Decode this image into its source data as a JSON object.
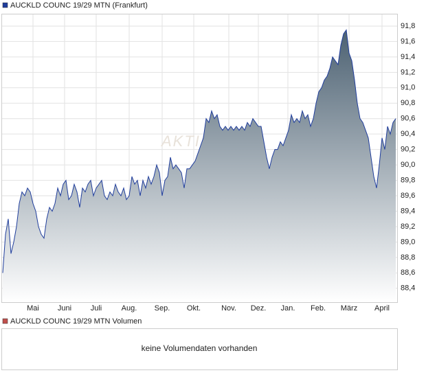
{
  "chart_data": {
    "type": "area",
    "title": "AUCKLD COUNC 19/29 MTN (Frankfurt)",
    "watermark": "AKTIEN",
    "series": [
      {
        "name": "AUCKLD COUNC 19/29 MTN (Frankfurt)",
        "color": "#1f3d9c",
        "values": [
          88.6,
          89.1,
          89.3,
          88.85,
          89.0,
          89.2,
          89.5,
          89.65,
          89.6,
          89.7,
          89.65,
          89.5,
          89.4,
          89.2,
          89.1,
          89.05,
          89.3,
          89.45,
          89.4,
          89.5,
          89.7,
          89.6,
          89.75,
          89.8,
          89.55,
          89.6,
          89.75,
          89.65,
          89.45,
          89.7,
          89.65,
          89.75,
          89.8,
          89.6,
          89.7,
          89.75,
          89.8,
          89.6,
          89.55,
          89.65,
          89.6,
          89.75,
          89.65,
          89.6,
          89.7,
          89.55,
          89.6,
          89.85,
          89.75,
          89.8,
          89.6,
          89.8,
          89.7,
          89.85,
          89.75,
          89.85,
          90.0,
          89.9,
          89.6,
          89.8,
          89.85,
          90.1,
          89.95,
          90.0,
          89.95,
          89.9,
          89.7,
          89.95,
          89.95,
          90.0,
          90.05,
          90.15,
          90.25,
          90.35,
          90.6,
          90.55,
          90.7,
          90.6,
          90.65,
          90.5,
          90.45,
          90.5,
          90.45,
          90.5,
          90.45,
          90.5,
          90.45,
          90.5,
          90.45,
          90.55,
          90.5,
          90.6,
          90.55,
          90.5,
          90.5,
          90.3,
          90.1,
          89.95,
          90.1,
          90.2,
          90.2,
          90.3,
          90.25,
          90.35,
          90.45,
          90.65,
          90.55,
          90.6,
          90.55,
          90.7,
          90.6,
          90.65,
          90.5,
          90.6,
          90.8,
          90.95,
          91.0,
          91.1,
          91.15,
          91.25,
          91.4,
          91.35,
          91.3,
          91.55,
          91.7,
          91.75,
          91.45,
          91.35,
          91.1,
          90.8,
          90.6,
          90.55,
          90.45,
          90.35,
          90.1,
          89.85,
          89.7,
          90.0,
          90.35,
          90.2,
          90.5,
          90.4,
          90.55,
          90.6
        ]
      }
    ],
    "xlim": [
      0,
      143
    ],
    "xticks": [
      {
        "value": 11,
        "label": "Mai"
      },
      {
        "value": 22.5,
        "label": "Juni"
      },
      {
        "value": 34,
        "label": "Juli"
      },
      {
        "value": 46,
        "label": "Aug."
      },
      {
        "value": 58,
        "label": "Sep."
      },
      {
        "value": 69.5,
        "label": "Okt."
      },
      {
        "value": 82.25,
        "label": "Nov."
      },
      {
        "value": 93,
        "label": "Dez."
      },
      {
        "value": 103.75,
        "label": "Jan."
      },
      {
        "value": 114.75,
        "label": "Feb."
      },
      {
        "value": 126,
        "label": "März"
      },
      {
        "value": 138,
        "label": "April"
      }
    ],
    "ylim": [
      88.22,
      91.96
    ],
    "yticks": [
      {
        "value": 88.4,
        "label": "88,4"
      },
      {
        "value": 88.6,
        "label": "88,6"
      },
      {
        "value": 88.8,
        "label": "88,8"
      },
      {
        "value": 89.0,
        "label": "89,0"
      },
      {
        "value": 89.2,
        "label": "89,2"
      },
      {
        "value": 89.4,
        "label": "89,4"
      },
      {
        "value": 89.6,
        "label": "89,6"
      },
      {
        "value": 89.8,
        "label": "89,8"
      },
      {
        "value": 90.0,
        "label": "90,0"
      },
      {
        "value": 90.2,
        "label": "90,2"
      },
      {
        "value": 90.4,
        "label": "90,4"
      },
      {
        "value": 90.6,
        "label": "90,6"
      },
      {
        "value": 90.8,
        "label": "90,8"
      },
      {
        "value": 91.0,
        "label": "91,0"
      },
      {
        "value": 91.2,
        "label": "91,2"
      },
      {
        "value": 91.4,
        "label": "91,4"
      },
      {
        "value": 91.6,
        "label": "91,6"
      },
      {
        "value": 91.8,
        "label": "91,8"
      }
    ],
    "grid": true,
    "volume": {
      "title": "AUCKLD COUNC 19/29 MTN Volumen",
      "color": "#c0504d",
      "message": "keine Volumendaten vorhanden"
    }
  }
}
